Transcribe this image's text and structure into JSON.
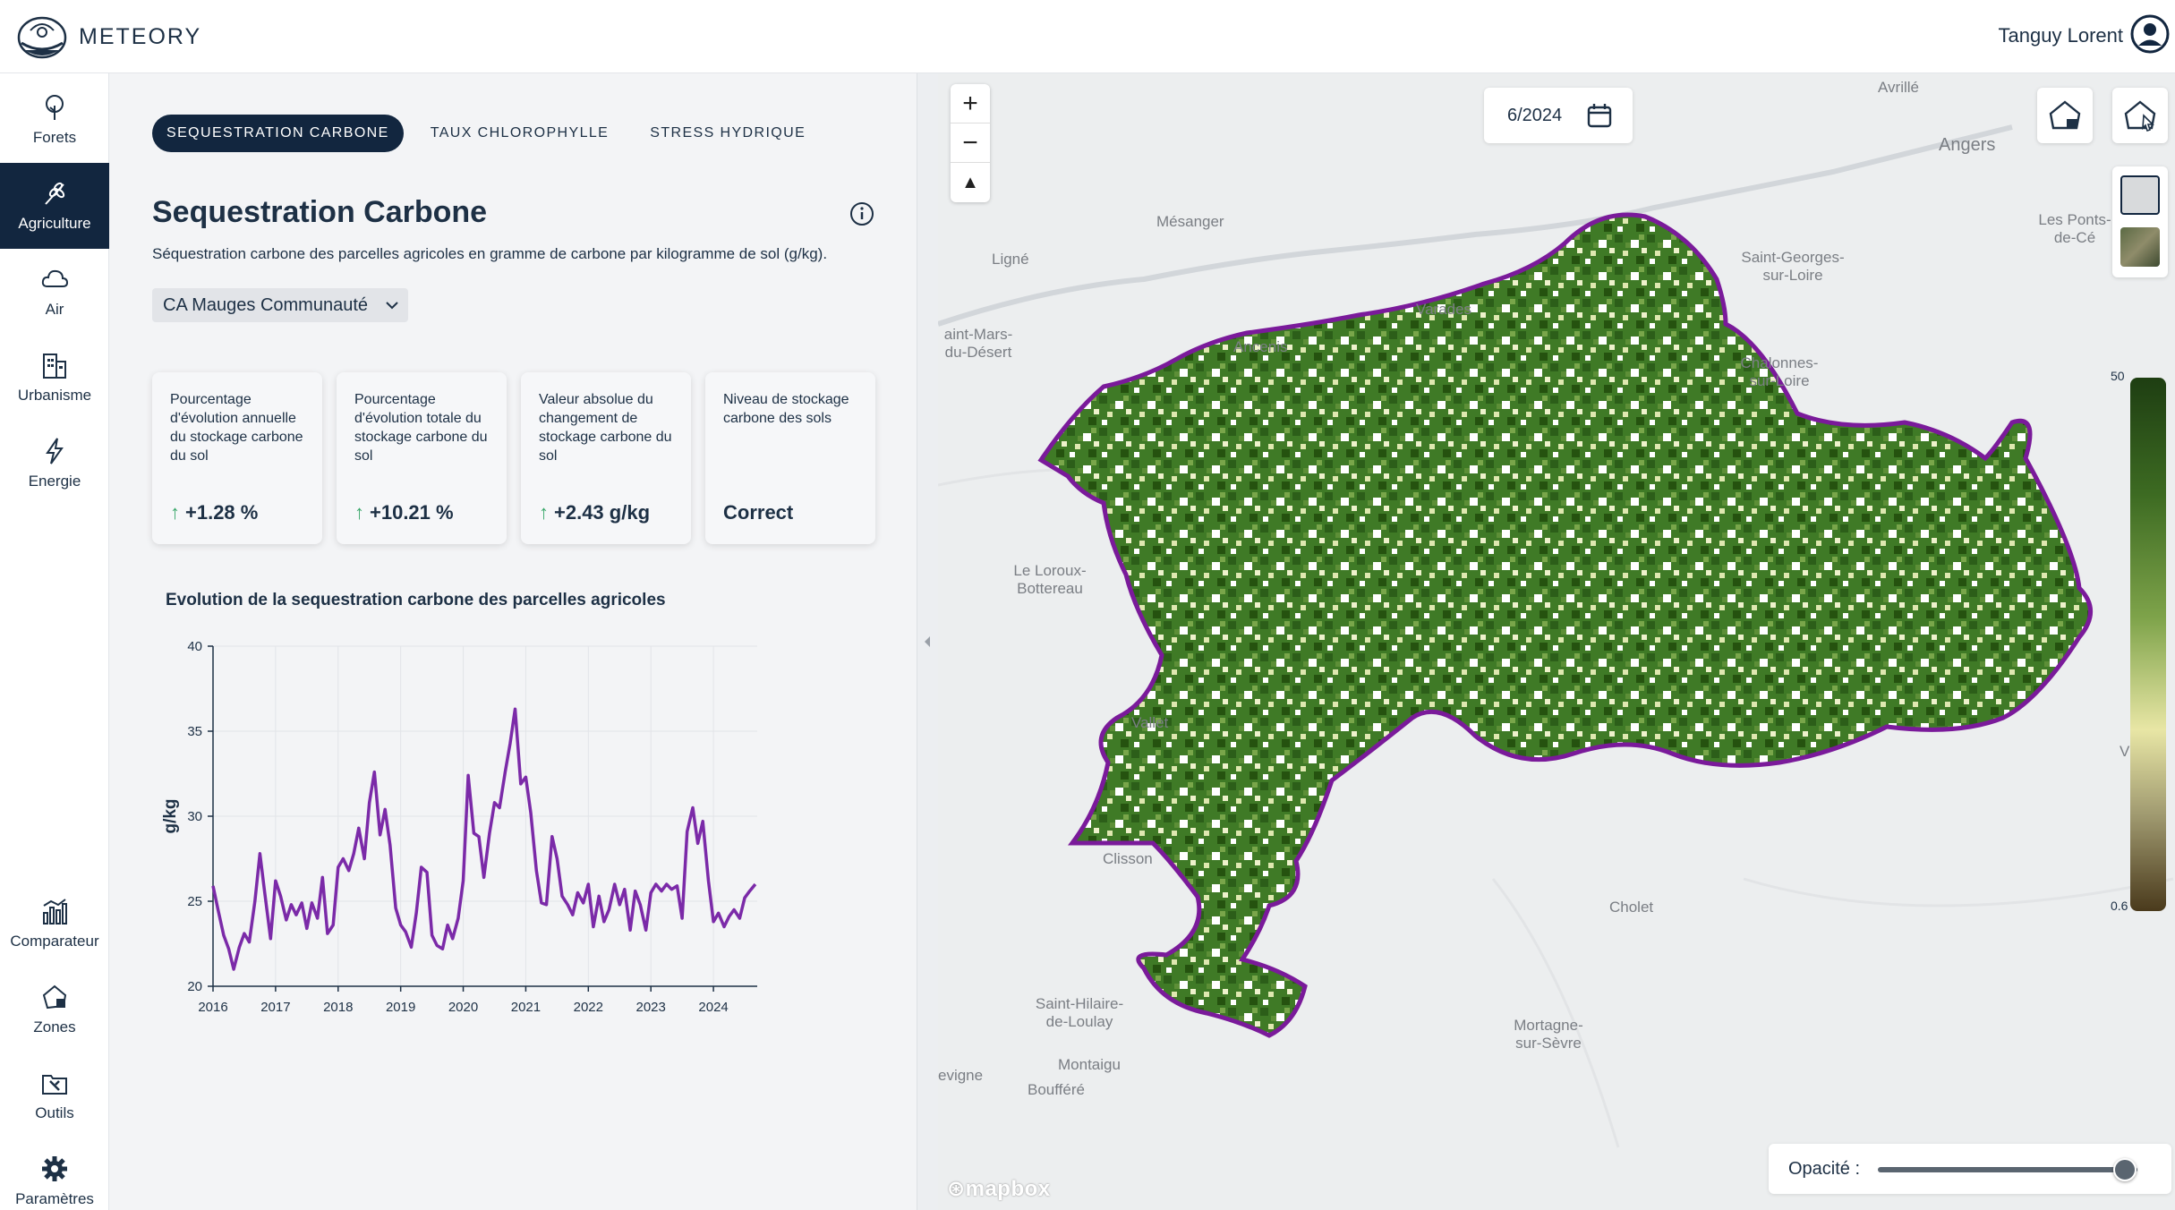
{
  "app": {
    "brand": "METEORY",
    "user_first": "Tanguy",
    "user_last": "Lorent",
    "accent": "#12263f"
  },
  "nav": {
    "top": [
      {
        "label": "Forets",
        "icon": "tree-icon",
        "active": false
      },
      {
        "label": "Agriculture",
        "icon": "wheat-icon",
        "active": true
      },
      {
        "label": "Air",
        "icon": "cloud-icon",
        "active": false
      },
      {
        "label": "Urbanisme",
        "icon": "building-icon",
        "active": false
      },
      {
        "label": "Energie",
        "icon": "bolt-icon",
        "active": false
      }
    ],
    "bottom": [
      {
        "label": "Comparateur",
        "icon": "bar-chart-icon"
      },
      {
        "label": "Zones",
        "icon": "zone-icon"
      },
      {
        "label": "Outils",
        "icon": "tools-icon"
      },
      {
        "label": "Paramètres",
        "icon": "gear-icon"
      }
    ]
  },
  "tabs": [
    "SEQUESTRATION CARBONE",
    "TAUX CHLOROPHYLLE",
    "STRESS HYDRIQUE"
  ],
  "header": {
    "title": "Sequestration Carbone",
    "subtitle": "Séquestration carbone des parcelles agricoles en gramme de carbone par kilogramme de sol (g/kg).",
    "zone_select": "CA Mauges Communauté"
  },
  "cards": [
    {
      "label": "Pourcentage d'évolution annuelle du stockage carbone du sol",
      "value": "+1.28 %",
      "arrow": "↑"
    },
    {
      "label": "Pourcentage d'évolution totale du stockage carbone du sol",
      "value": "+10.21 %",
      "arrow": "↑"
    },
    {
      "label": "Valeur absolue du changement de stockage carbone du sol",
      "value": "+2.43 g/kg",
      "arrow": "↑"
    },
    {
      "label": "Niveau de stockage carbone des sols",
      "value": "Correct",
      "arrow": ""
    }
  ],
  "chart_title": "Evolution de la sequestration carbone des parcelles agricoles",
  "chart_data": {
    "type": "line",
    "title": "Evolution de la sequestration carbone des parcelles agricoles",
    "xlabel": "",
    "ylabel": "g/kg",
    "ylim": [
      20,
      40
    ],
    "xlim": [
      2016,
      2024.7
    ],
    "yticks": [
      20,
      25,
      30,
      35,
      40
    ],
    "xticks": [
      2016,
      2017,
      2018,
      2019,
      2020,
      2021,
      2022,
      2023,
      2024
    ],
    "grid": true,
    "color": "#7b2aa8",
    "series": [
      {
        "name": "Sequestration carbone",
        "x": [
          2016.0,
          2016.08,
          2016.17,
          2016.25,
          2016.33,
          2016.42,
          2016.5,
          2016.58,
          2016.67,
          2016.75,
          2016.83,
          2016.92,
          2017.0,
          2017.08,
          2017.17,
          2017.25,
          2017.33,
          2017.42,
          2017.5,
          2017.58,
          2017.67,
          2017.75,
          2017.83,
          2017.92,
          2018.0,
          2018.08,
          2018.17,
          2018.25,
          2018.33,
          2018.42,
          2018.5,
          2018.58,
          2018.67,
          2018.75,
          2018.83,
          2018.92,
          2019.0,
          2019.08,
          2019.17,
          2019.25,
          2019.33,
          2019.42,
          2019.5,
          2019.58,
          2019.67,
          2019.75,
          2019.83,
          2019.92,
          2020.0,
          2020.08,
          2020.17,
          2020.25,
          2020.33,
          2020.42,
          2020.5,
          2020.58,
          2020.67,
          2020.75,
          2020.83,
          2020.92,
          2021.0,
          2021.08,
          2021.17,
          2021.25,
          2021.33,
          2021.42,
          2021.5,
          2021.58,
          2021.67,
          2021.75,
          2021.83,
          2021.92,
          2022.0,
          2022.08,
          2022.17,
          2022.25,
          2022.33,
          2022.42,
          2022.5,
          2022.58,
          2022.67,
          2022.75,
          2022.83,
          2022.92,
          2023.0,
          2023.08,
          2023.17,
          2023.25,
          2023.33,
          2023.42,
          2023.5,
          2023.58,
          2023.67,
          2023.75,
          2023.83,
          2023.92,
          2024.0,
          2024.08,
          2024.17,
          2024.25,
          2024.33,
          2024.42,
          2024.5,
          2024.58,
          2024.67
        ],
        "values": [
          25.9,
          24.5,
          23.0,
          22.2,
          21.0,
          22.3,
          23.1,
          22.6,
          25.0,
          27.8,
          25.4,
          22.8,
          26.2,
          25.3,
          23.9,
          24.8,
          24.2,
          24.9,
          23.4,
          24.9,
          24.0,
          26.4,
          23.1,
          23.6,
          27.0,
          27.5,
          26.8,
          27.8,
          29.3,
          27.5,
          30.8,
          32.6,
          28.9,
          30.4,
          28.3,
          24.6,
          23.6,
          23.2,
          22.3,
          24.3,
          27.0,
          26.7,
          23.0,
          22.4,
          22.2,
          23.6,
          22.8,
          24.0,
          26.2,
          32.4,
          29.0,
          28.8,
          26.4,
          29.0,
          30.8,
          30.5,
          32.6,
          34.3,
          36.3,
          31.9,
          32.3,
          30.2,
          26.8,
          24.9,
          24.8,
          28.8,
          27.5,
          25.3,
          24.8,
          24.2,
          25.5,
          24.9,
          26.0,
          23.5,
          25.3,
          23.8,
          24.5,
          26.0,
          24.8,
          25.7,
          23.3,
          25.6,
          24.8,
          23.3,
          25.5,
          26.0,
          25.6,
          26.0,
          25.7,
          25.9,
          24.0,
          29.1,
          30.5,
          28.4,
          29.7,
          26.2,
          23.8,
          24.3,
          23.5,
          24.1,
          24.5,
          24.0,
          25.2,
          25.6,
          26.0
        ]
      }
    ]
  },
  "map": {
    "date": "6/2024",
    "zoom_in": "+",
    "zoom_out": "−",
    "north": "▲",
    "legend_max": "50",
    "legend_min": "0.6",
    "opacity_label": "Opacité :",
    "opacity": 0.95,
    "attribution": "mapbox",
    "places": [
      "Avrillé",
      "Angers",
      "Mésanger",
      "Ligné",
      "Varades",
      "Saint-Georges-\nsur-Loire",
      "Les Ponts-\nde-Cé",
      "aint-Mars-\ndu-Désert",
      "Ancenis",
      "Chalonnes-\nsur-Loire",
      "Le Loroux-\nBottereau",
      "Vallet",
      "Vihiers",
      "Clisson",
      "Cholet",
      "Saint-Hilaire-\nde-Loulay",
      "Montaigu",
      "Boufféré",
      "Mortagne-\nsur-Sèvre",
      "evigne"
    ]
  }
}
